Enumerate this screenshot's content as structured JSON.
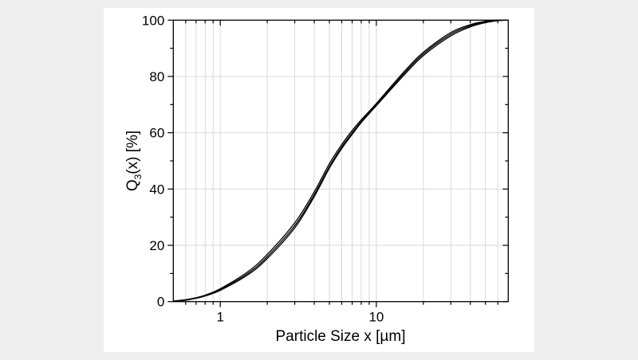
{
  "chart_data": {
    "type": "line",
    "title": "",
    "xlabel": "Particle Size x [µm]",
    "ylabel_main": "Q",
    "ylabel_sub": "3",
    "ylabel_rest": "(x) [%]",
    "xscale": "log",
    "xlim": [
      0.5,
      70
    ],
    "ylim": [
      0,
      100
    ],
    "xticks": [
      {
        "value": 1,
        "label": "1"
      },
      {
        "value": 10,
        "label": "10"
      }
    ],
    "yticks": [
      {
        "value": 0,
        "label": "0"
      },
      {
        "value": 20,
        "label": "20"
      },
      {
        "value": 40,
        "label": "40"
      },
      {
        "value": 60,
        "label": "60"
      },
      {
        "value": 80,
        "label": "80"
      },
      {
        "value": 100,
        "label": "100"
      }
    ],
    "grid": true,
    "line_color": "#000000",
    "grid_color": "#d9d9d9",
    "x": [
      0.5,
      0.6,
      0.7,
      0.8,
      1,
      1.5,
      2,
      3,
      4,
      5,
      6,
      7,
      8,
      10,
      15,
      20,
      30,
      40,
      50,
      60,
      70
    ],
    "series": [
      {
        "values": [
          0.2,
          0.6,
          1.3,
          2.1,
          4.3,
          10,
          16,
          27,
          38,
          48,
          55,
          60,
          64,
          70,
          81,
          88,
          95,
          98,
          99.4,
          99.9,
          100
        ]
      },
      {
        "values": [
          0.2,
          0.7,
          1.4,
          2.3,
          4.6,
          10.6,
          16.8,
          28,
          39,
          49,
          55.8,
          60.8,
          64.6,
          70.4,
          81.6,
          88.6,
          95.6,
          98.4,
          99.6,
          100,
          100
        ]
      },
      {
        "values": [
          0.1,
          0.5,
          1.2,
          2.0,
          4.0,
          9.5,
          15.3,
          26.2,
          37.3,
          47.4,
          54.4,
          59.4,
          63.6,
          69.6,
          80.4,
          87.4,
          94.4,
          97.6,
          99.1,
          99.8,
          100
        ]
      }
    ]
  }
}
